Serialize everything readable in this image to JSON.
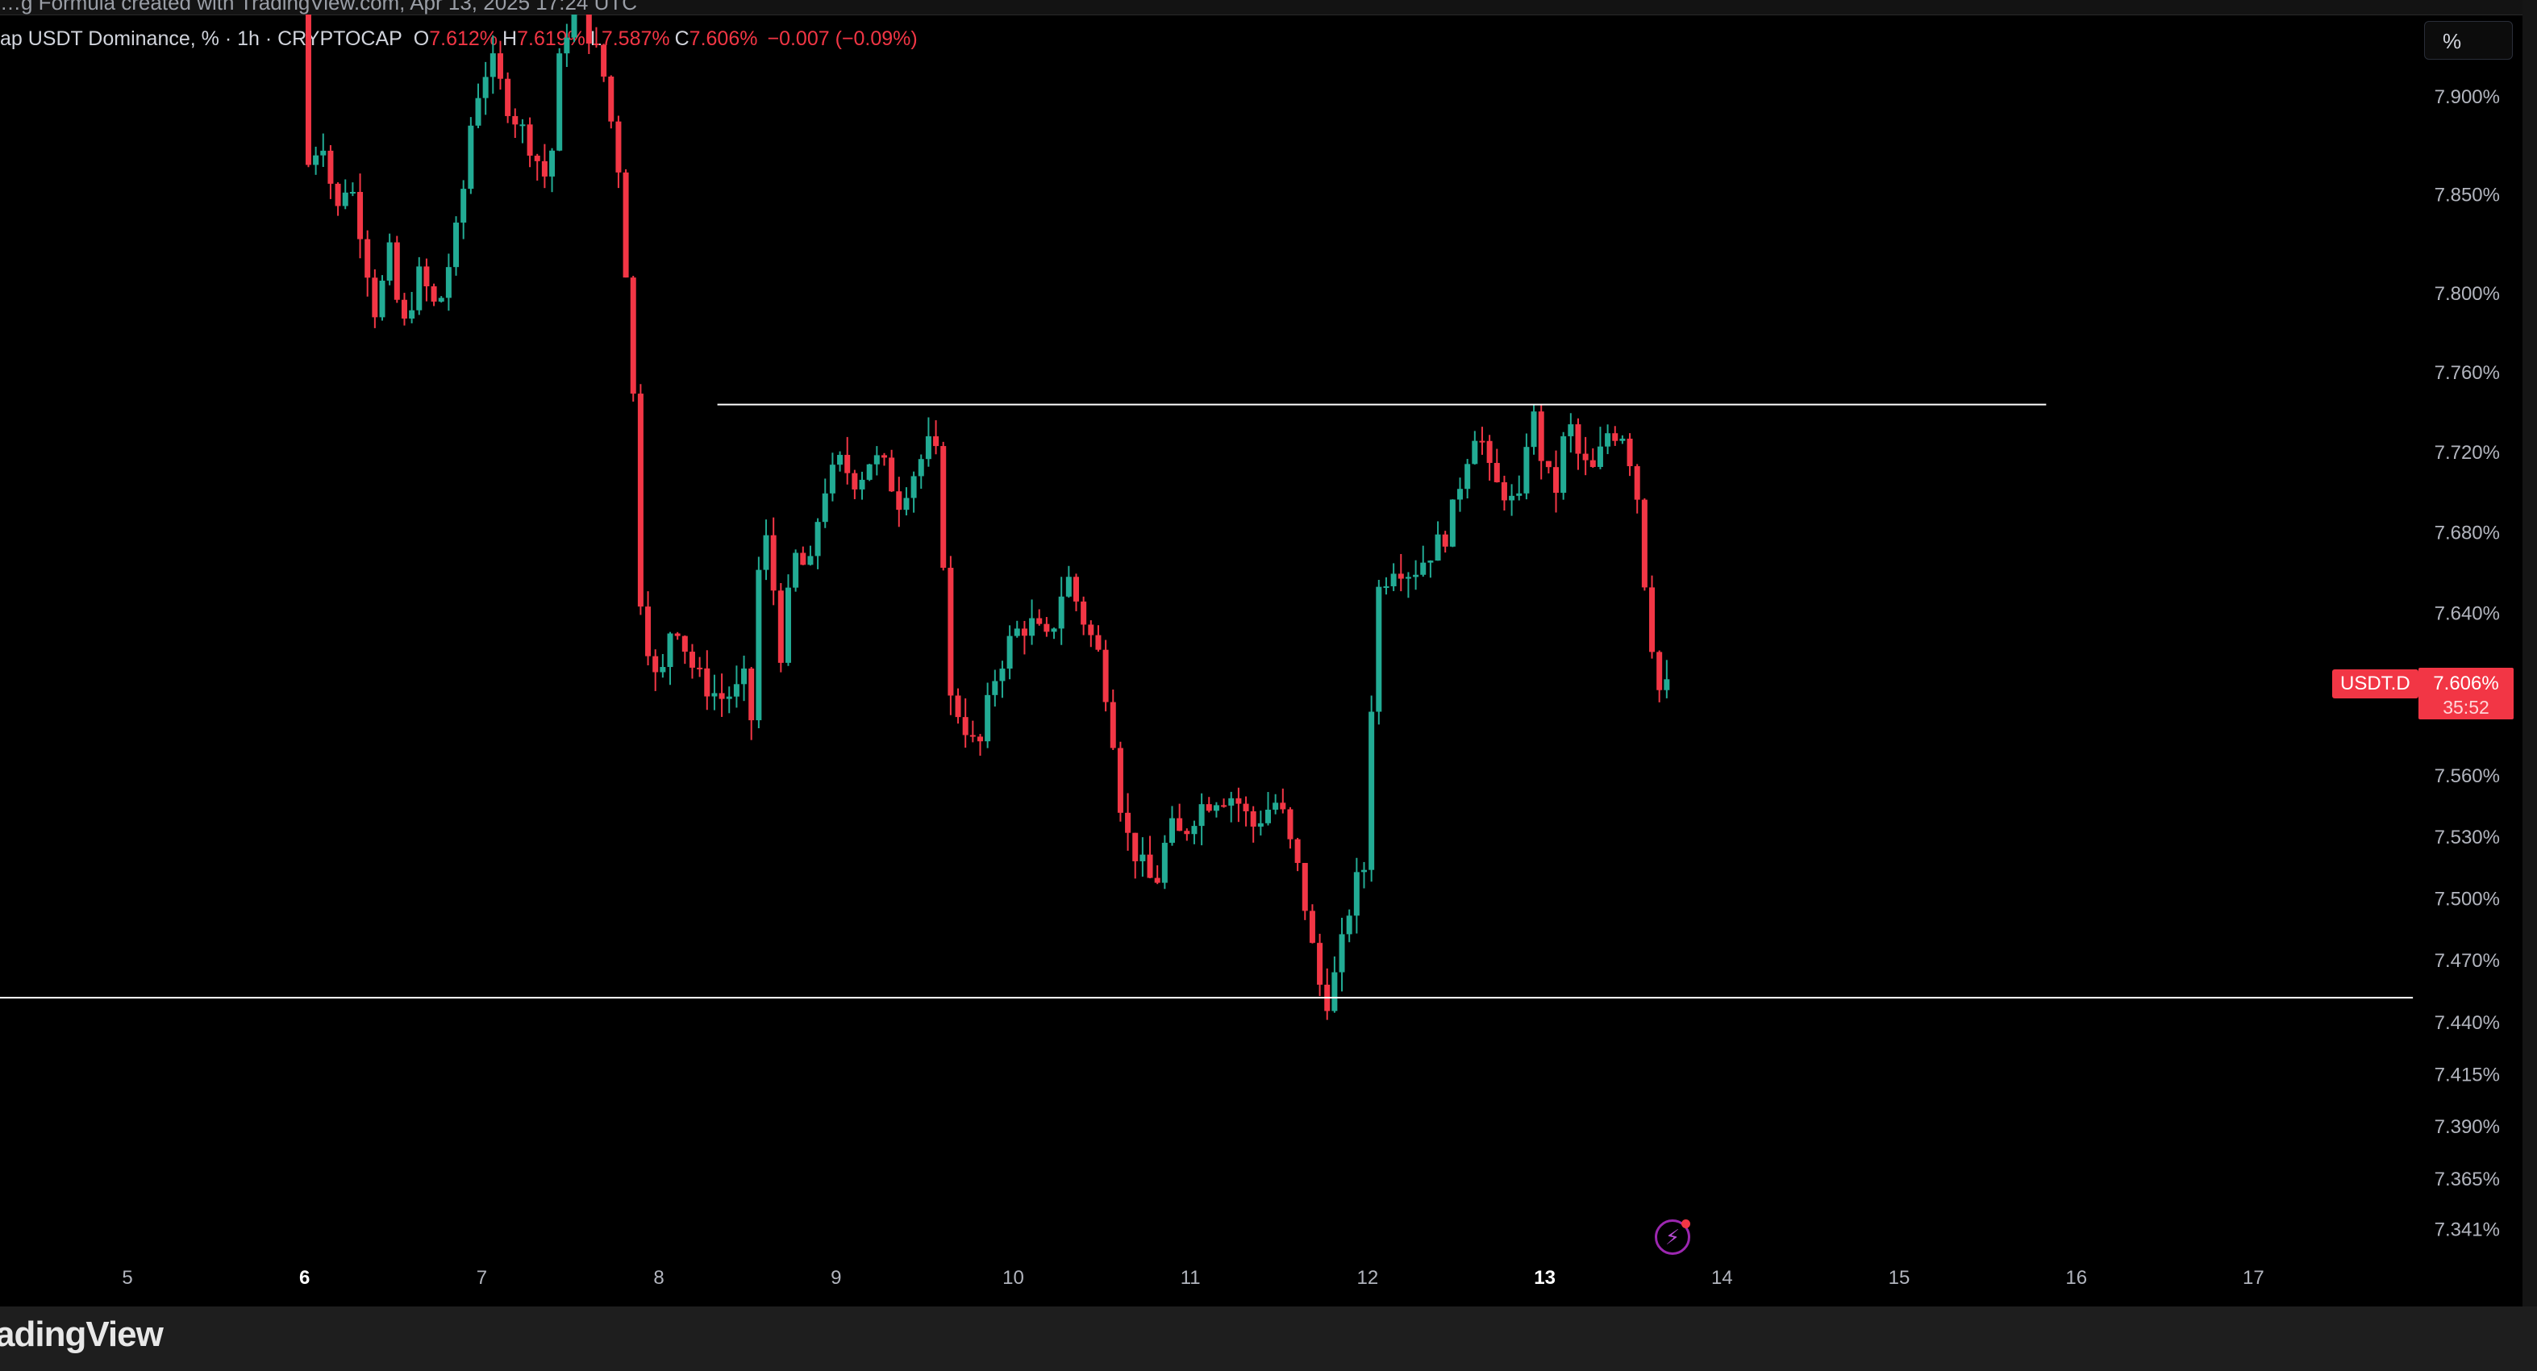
{
  "top_strip": {
    "text": "…g Formula created with TradingView.com, Apr 13, 2025 17:24 UTC"
  },
  "legend": {
    "symbol_desc": "ap USDT Dominance, % · 1h · CRYPTOCAP",
    "o_label": "O",
    "o_value": "7.612%",
    "h_label": "H",
    "h_value": "7.619%",
    "l_label": "L",
    "l_value": "7.587%",
    "c_label": "C",
    "c_value": "7.606%",
    "change": "−0.007 (−0.09%)"
  },
  "scale_button": "%",
  "price_tag": {
    "symbol": "USDT.D",
    "price": "7.606%",
    "countdown": "35:52"
  },
  "brand": "adingView",
  "colors": {
    "up": "#22ab94",
    "down": "#f23645",
    "bg": "#000000",
    "axis_text": "#b2b5be",
    "hline": "#ffffff",
    "bolt": "#9c27b0"
  },
  "icons": {
    "bolt": "lightning-bolt-icon"
  },
  "chart_data": {
    "type": "candlestick",
    "title": "ap USDT Dominance, % · 1h · CRYPTOCAP",
    "y_axis": {
      "scale": "log",
      "ticks": [
        "7.900%",
        "7.850%",
        "7.800%",
        "7.760%",
        "7.720%",
        "7.680%",
        "7.640%",
        "7.560%",
        "7.530%",
        "7.500%",
        "7.470%",
        "7.440%",
        "7.415%",
        "7.390%",
        "7.365%",
        "7.341%"
      ],
      "tick_values": [
        7.9,
        7.85,
        7.8,
        7.76,
        7.72,
        7.68,
        7.64,
        7.56,
        7.53,
        7.5,
        7.47,
        7.44,
        7.415,
        7.39,
        7.365,
        7.341
      ]
    },
    "x_axis": {
      "ticks": [
        "5",
        "6",
        "7",
        "8",
        "9",
        "10",
        "11",
        "12",
        "13",
        "14",
        "15",
        "16",
        "17"
      ],
      "tick_days": [
        5,
        6,
        7,
        8,
        9,
        10,
        11,
        12,
        13,
        14,
        15,
        16,
        17
      ],
      "bold": [
        "6",
        "13"
      ]
    },
    "horizontal_lines": [
      {
        "value": 7.744,
        "from_day": 8.33,
        "to_day": 15.83
      },
      {
        "value": 7.452,
        "from_day": 4.27,
        "to_day": 17.9
      }
    ],
    "last_value": 7.606,
    "series_path": [
      [
        5.98,
        7.945
      ],
      [
        6.02,
        7.865
      ],
      [
        6.1,
        7.88
      ],
      [
        6.18,
        7.84
      ],
      [
        6.25,
        7.86
      ],
      [
        6.32,
        7.83
      ],
      [
        6.4,
        7.79
      ],
      [
        6.48,
        7.82
      ],
      [
        6.55,
        7.78
      ],
      [
        6.65,
        7.81
      ],
      [
        6.75,
        7.79
      ],
      [
        6.88,
        7.84
      ],
      [
        6.95,
        7.895
      ],
      [
        7.05,
        7.92
      ],
      [
        7.15,
        7.895
      ],
      [
        7.25,
        7.88
      ],
      [
        7.38,
        7.855
      ],
      [
        7.45,
        7.93
      ],
      [
        7.55,
        7.945
      ],
      [
        7.68,
        7.915
      ],
      [
        7.78,
        7.86
      ],
      [
        7.85,
        7.76
      ],
      [
        7.9,
        7.64
      ],
      [
        8.0,
        7.6
      ],
      [
        8.08,
        7.64
      ],
      [
        8.18,
        7.615
      ],
      [
        8.25,
        7.605
      ],
      [
        8.35,
        7.598
      ],
      [
        8.45,
        7.602
      ],
      [
        8.5,
        7.61
      ],
      [
        8.52,
        7.585
      ],
      [
        8.58,
        7.69
      ],
      [
        8.65,
        7.65
      ],
      [
        8.7,
        7.612
      ],
      [
        8.75,
        7.67
      ],
      [
        8.85,
        7.66
      ],
      [
        8.92,
        7.7
      ],
      [
        9.02,
        7.715
      ],
      [
        9.12,
        7.705
      ],
      [
        9.2,
        7.718
      ],
      [
        9.28,
        7.712
      ],
      [
        9.35,
        7.695
      ],
      [
        9.45,
        7.712
      ],
      [
        9.55,
        7.728
      ],
      [
        9.6,
        7.69
      ],
      [
        9.62,
        7.6
      ],
      [
        9.7,
        7.59
      ],
      [
        9.8,
        7.57
      ],
      [
        9.88,
        7.605
      ],
      [
        10.0,
        7.63
      ],
      [
        10.1,
        7.635
      ],
      [
        10.2,
        7.625
      ],
      [
        10.3,
        7.66
      ],
      [
        10.38,
        7.64
      ],
      [
        10.48,
        7.62
      ],
      [
        10.55,
        7.59
      ],
      [
        10.62,
        7.535
      ],
      [
        10.7,
        7.52
      ],
      [
        10.8,
        7.505
      ],
      [
        10.88,
        7.535
      ],
      [
        10.95,
        7.53
      ],
      [
        11.05,
        7.545
      ],
      [
        11.15,
        7.55
      ],
      [
        11.25,
        7.55
      ],
      [
        11.35,
        7.535
      ],
      [
        11.45,
        7.545
      ],
      [
        11.5,
        7.548
      ],
      [
        11.55,
        7.53
      ],
      [
        11.62,
        7.51
      ],
      [
        11.72,
        7.46
      ],
      [
        11.78,
        7.45
      ],
      [
        11.85,
        7.475
      ],
      [
        11.92,
        7.505
      ],
      [
        11.98,
        7.515
      ],
      [
        12.05,
        7.65
      ],
      [
        12.15,
        7.665
      ],
      [
        12.25,
        7.66
      ],
      [
        12.35,
        7.67
      ],
      [
        12.45,
        7.68
      ],
      [
        12.55,
        7.715
      ],
      [
        12.62,
        7.735
      ],
      [
        12.7,
        7.705
      ],
      [
        12.78,
        7.7
      ],
      [
        12.85,
        7.69
      ],
      [
        12.92,
        7.745
      ],
      [
        13.0,
        7.71
      ],
      [
        13.08,
        7.7
      ],
      [
        13.12,
        7.74
      ],
      [
        13.2,
        7.715
      ],
      [
        13.28,
        7.71
      ],
      [
        13.35,
        7.73
      ],
      [
        13.45,
        7.73
      ],
      [
        13.52,
        7.7
      ],
      [
        13.58,
        7.64
      ],
      [
        13.65,
        7.6
      ],
      [
        13.72,
        7.606
      ]
    ]
  }
}
